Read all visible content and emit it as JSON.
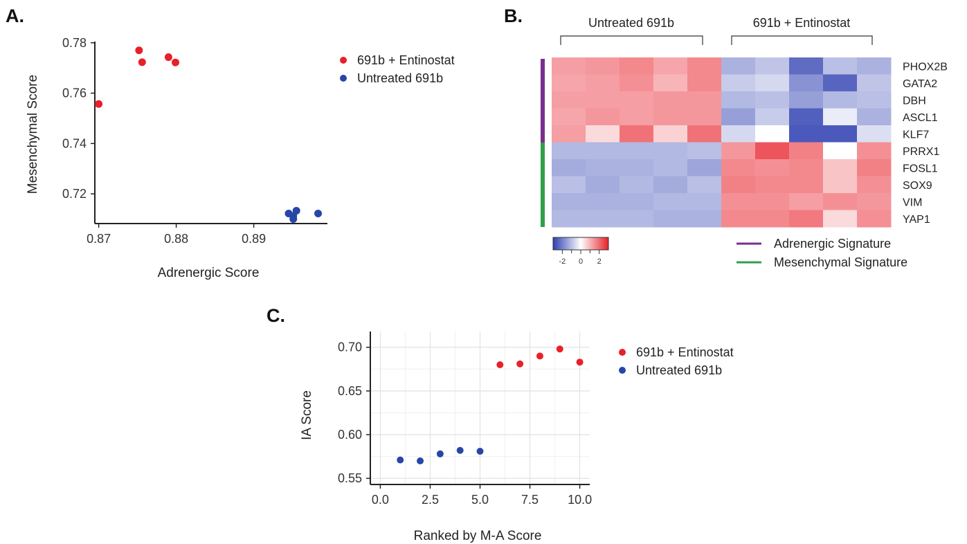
{
  "panels": {
    "a": "A.",
    "b": "B.",
    "c": "C."
  },
  "legend_scatter": {
    "entinostat": "691b + Entinostat",
    "untreated": "Untreated 691b"
  },
  "colors": {
    "entinostat": "#e8202a",
    "untreated": "#2746a8",
    "adrenergic": "#7a2e8e",
    "mesenchymal": "#2ea04a",
    "heat_low": "#2e3fb0",
    "heat_mid": "#ffffff",
    "heat_high": "#e8202a"
  },
  "chart_data": [
    {
      "id": "A",
      "type": "scatter",
      "xlabel": "Adrenergic Score",
      "ylabel": "Mesenchymal Score",
      "xlim": [
        0.8695,
        0.8995
      ],
      "ylim": [
        0.7082,
        0.7805
      ],
      "xticks": [
        0.87,
        0.88,
        0.89
      ],
      "xtick_labels": [
        "0.87",
        "0.88",
        "0.89"
      ],
      "yticks": [
        0.72,
        0.74,
        0.76,
        0.78
      ],
      "ytick_labels": [
        "0.72",
        "0.74",
        "0.76",
        "0.78"
      ],
      "grid": false,
      "legend": "right",
      "series": [
        {
          "name": "691b + Entinostat",
          "color_key": "entinostat",
          "points": [
            [
              0.87,
              0.7557
            ],
            [
              0.8752,
              0.777
            ],
            [
              0.8756,
              0.7723
            ],
            [
              0.879,
              0.7743
            ],
            [
              0.8799,
              0.7722
            ]
          ]
        },
        {
          "name": "Untreated 691b",
          "color_key": "untreated",
          "points": [
            [
              0.8945,
              0.7122
            ],
            [
              0.8951,
              0.7112
            ],
            [
              0.8955,
              0.7133
            ],
            [
              0.8951,
              0.71
            ],
            [
              0.8983,
              0.7122
            ]
          ]
        }
      ]
    },
    {
      "id": "B",
      "type": "heatmap",
      "group_labels": [
        "Untreated 691b",
        "691b + Entinostat"
      ],
      "genes": [
        "PHOX2B",
        "GATA2",
        "DBH",
        "ASCL1",
        "KLF7",
        "PRRX1",
        "FOSL1",
        "SOX9",
        "VIM",
        "YAP1"
      ],
      "gene_groups": [
        {
          "name": "Adrenergic Signature",
          "color_key": "adrenergic",
          "rows": 5
        },
        {
          "name": "Mesenchymal Signature",
          "color_key": "mesenchymal",
          "rows": 5
        }
      ],
      "scale_range": [
        -3,
        3
      ],
      "scale_ticks": [
        -2,
        0,
        2
      ],
      "scale_tick_labels": [
        "-2",
        "0",
        "2"
      ],
      "values": [
        [
          1.3,
          1.4,
          1.6,
          1.2,
          1.6,
          -1.2,
          -0.9,
          -2.3,
          -1.0,
          -1.2
        ],
        [
          1.2,
          1.3,
          1.5,
          1.0,
          1.6,
          -0.8,
          -0.6,
          -1.7,
          -2.4,
          -0.9
        ],
        [
          1.3,
          1.3,
          1.3,
          1.4,
          1.4,
          -1.1,
          -1.0,
          -1.5,
          -1.1,
          -1.0
        ],
        [
          1.2,
          1.4,
          1.3,
          1.4,
          1.4,
          -1.5,
          -0.8,
          -2.5,
          -0.3,
          -1.2
        ],
        [
          1.3,
          0.5,
          1.9,
          0.6,
          1.9,
          -0.6,
          0.0,
          -2.6,
          -2.6,
          -0.5
        ],
        [
          -1.1,
          -1.1,
          -1.1,
          -1.1,
          -1.0,
          1.4,
          2.3,
          1.7,
          0.0,
          1.5
        ],
        [
          -1.3,
          -1.2,
          -1.2,
          -1.1,
          -1.4,
          1.6,
          1.5,
          1.6,
          0.8,
          1.7
        ],
        [
          -1.0,
          -1.3,
          -1.1,
          -1.3,
          -1.0,
          1.7,
          1.6,
          1.6,
          0.8,
          1.5
        ],
        [
          -1.2,
          -1.2,
          -1.2,
          -1.1,
          -1.1,
          1.5,
          1.5,
          1.3,
          1.5,
          1.4
        ],
        [
          -1.1,
          -1.1,
          -1.1,
          -1.2,
          -1.2,
          1.6,
          1.6,
          1.8,
          0.5,
          1.5
        ]
      ]
    },
    {
      "id": "C",
      "type": "scatter",
      "xlabel": "Ranked by M-A Score",
      "ylabel": "IA Score",
      "xlim": [
        -0.5,
        10.5
      ],
      "ylim": [
        0.543,
        0.718
      ],
      "xticks": [
        0,
        2.5,
        5,
        7.5,
        10
      ],
      "xtick_labels": [
        "0.0",
        "2.5",
        "5.0",
        "7.5",
        "10.0"
      ],
      "yticks": [
        0.55,
        0.6,
        0.65,
        0.7
      ],
      "ytick_labels": [
        "0.55",
        "0.60",
        "0.65",
        "0.70"
      ],
      "grid": true,
      "legend": "right",
      "series": [
        {
          "name": "691b + Entinostat",
          "color_key": "entinostat",
          "points": [
            [
              6,
              0.68
            ],
            [
              7,
              0.681
            ],
            [
              8,
              0.69
            ],
            [
              9,
              0.698
            ],
            [
              10,
              0.683
            ]
          ]
        },
        {
          "name": "Untreated 691b",
          "color_key": "untreated",
          "points": [
            [
              1,
              0.571
            ],
            [
              2,
              0.57
            ],
            [
              3,
              0.578
            ],
            [
              4,
              0.582
            ],
            [
              5,
              0.581
            ]
          ]
        }
      ]
    }
  ]
}
